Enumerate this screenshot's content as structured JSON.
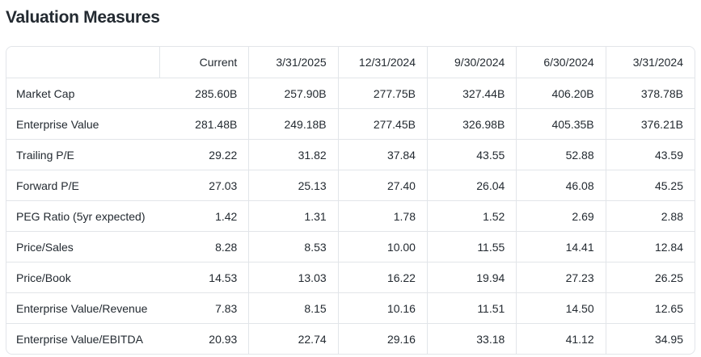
{
  "section": {
    "title": "Valuation Measures"
  },
  "table": {
    "columns": [
      "",
      "Current",
      "3/31/2025",
      "12/31/2024",
      "9/30/2024",
      "6/30/2024",
      "3/31/2024"
    ],
    "rows": [
      {
        "label": "Market Cap",
        "values": [
          "285.60B",
          "257.90B",
          "277.75B",
          "327.44B",
          "406.20B",
          "378.78B"
        ]
      },
      {
        "label": "Enterprise Value",
        "values": [
          "281.48B",
          "249.18B",
          "277.45B",
          "326.98B",
          "405.35B",
          "376.21B"
        ]
      },
      {
        "label": "Trailing P/E",
        "values": [
          "29.22",
          "31.82",
          "37.84",
          "43.55",
          "52.88",
          "43.59"
        ]
      },
      {
        "label": "Forward P/E",
        "values": [
          "27.03",
          "25.13",
          "27.40",
          "26.04",
          "46.08",
          "45.25"
        ]
      },
      {
        "label": "PEG Ratio (5yr expected)",
        "values": [
          "1.42",
          "1.31",
          "1.78",
          "1.52",
          "2.69",
          "2.88"
        ]
      },
      {
        "label": "Price/Sales",
        "values": [
          "8.28",
          "8.53",
          "10.00",
          "11.55",
          "14.41",
          "12.84"
        ]
      },
      {
        "label": "Price/Book",
        "values": [
          "14.53",
          "13.03",
          "16.22",
          "19.94",
          "27.23",
          "26.25"
        ]
      },
      {
        "label": "Enterprise Value/Revenue",
        "values": [
          "7.83",
          "8.15",
          "10.16",
          "11.51",
          "14.50",
          "12.65"
        ]
      },
      {
        "label": "Enterprise Value/EBITDA",
        "values": [
          "20.93",
          "22.74",
          "29.16",
          "33.18",
          "41.12",
          "34.95"
        ]
      }
    ]
  },
  "colors": {
    "text": "#232a31",
    "border": "#e2e5e9",
    "background": "#ffffff"
  }
}
